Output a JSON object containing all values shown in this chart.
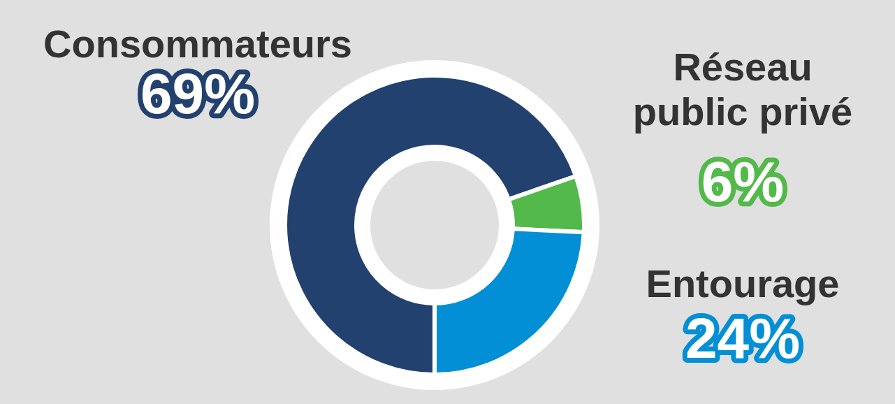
{
  "chart_data": {
    "type": "donut",
    "categories": [
      "Consommateurs",
      "Réseau public privé",
      "Entourage"
    ],
    "values": [
      69,
      6,
      24
    ],
    "colors": [
      "#22416f",
      "#52b94a",
      "#038fd6"
    ],
    "value_labels": [
      "69%",
      "6%",
      "24%"
    ]
  }
}
